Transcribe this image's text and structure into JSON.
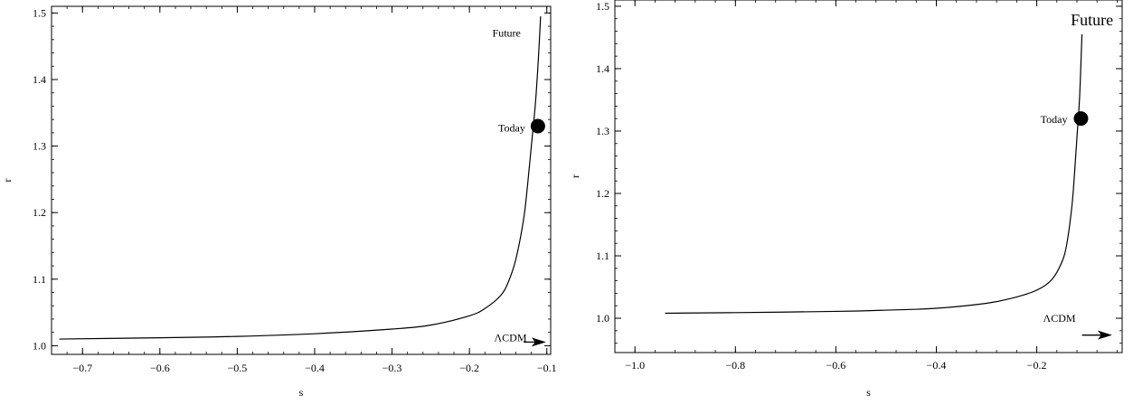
{
  "chart_data": [
    {
      "type": "line",
      "xlabel": "s",
      "ylabel": "r",
      "xlim": [
        -0.74,
        -0.095
      ],
      "ylim": [
        0.987,
        1.51
      ],
      "xticks": [
        -0.7,
        -0.6,
        -0.5,
        -0.4,
        -0.3,
        -0.2,
        -0.1
      ],
      "xtick_labels": [
        "−0.7",
        "−0.6",
        "−0.5",
        "−0.4",
        "−0.3",
        "−0.2",
        "−0.1"
      ],
      "yticks": [
        1.0,
        1.1,
        1.2,
        1.3,
        1.4,
        1.5
      ],
      "ytick_labels": [
        "1.0",
        "1.1",
        "1.2",
        "1.3",
        "1.4",
        "1.5"
      ],
      "series": [
        {
          "x": [
            -0.73,
            -0.6,
            -0.5,
            -0.4,
            -0.3,
            -0.25,
            -0.2,
            -0.18,
            -0.16,
            -0.15,
            -0.14,
            -0.13,
            -0.125,
            -0.12,
            -0.115,
            -0.112,
            -0.11,
            -0.108
          ],
          "y": [
            1.01,
            1.012,
            1.014,
            1.018,
            1.025,
            1.031,
            1.045,
            1.056,
            1.075,
            1.095,
            1.13,
            1.19,
            1.24,
            1.3,
            1.36,
            1.41,
            1.45,
            1.495
          ]
        }
      ],
      "markers": [
        {
          "label": "Today",
          "x": -0.1115,
          "y": 1.33
        }
      ],
      "annotations": [
        {
          "text": "Future",
          "x": -0.152,
          "y": 1.47
        },
        {
          "text": "ΛCDM",
          "x": -0.147,
          "y": 1.012
        }
      ],
      "arrow": {
        "x_from": -0.13,
        "x_to": -0.101,
        "y": 1.0055
      }
    },
    {
      "type": "line",
      "xlabel": "s",
      "ylabel": "r",
      "xlim": [
        -1.04,
        -0.03
      ],
      "ylim": [
        0.945,
        1.51
      ],
      "xticks": [
        -1.0,
        -0.8,
        -0.6,
        -0.4,
        -0.2
      ],
      "xtick_labels": [
        "−1.0",
        "−0.8",
        "−0.6",
        "−0.4",
        "−0.2"
      ],
      "yticks": [
        1.0,
        1.1,
        1.2,
        1.3,
        1.4,
        1.5
      ],
      "ytick_labels": [
        "1.0",
        "1.1",
        "1.2",
        "1.3",
        "1.4",
        "1.5"
      ],
      "series": [
        {
          "x": [
            -0.94,
            -0.8,
            -0.6,
            -0.5,
            -0.4,
            -0.3,
            -0.25,
            -0.2,
            -0.17,
            -0.15,
            -0.14,
            -0.13,
            -0.125,
            -0.12,
            -0.115,
            -0.112,
            -0.11
          ],
          "y": [
            1.008,
            1.009,
            1.011,
            1.013,
            1.016,
            1.024,
            1.032,
            1.045,
            1.062,
            1.09,
            1.12,
            1.18,
            1.23,
            1.29,
            1.35,
            1.41,
            1.455
          ]
        }
      ],
      "markers": [
        {
          "label": "Today",
          "x": -0.112,
          "y": 1.32
        }
      ],
      "annotations": [
        {
          "text": "Future",
          "x": -0.09,
          "y": 1.475
        },
        {
          "text": "ΛCDM",
          "x": -0.155,
          "y": 1.0
        }
      ],
      "arrow": {
        "x_from": -0.11,
        "x_to": -0.05,
        "y": 0.973
      }
    }
  ]
}
